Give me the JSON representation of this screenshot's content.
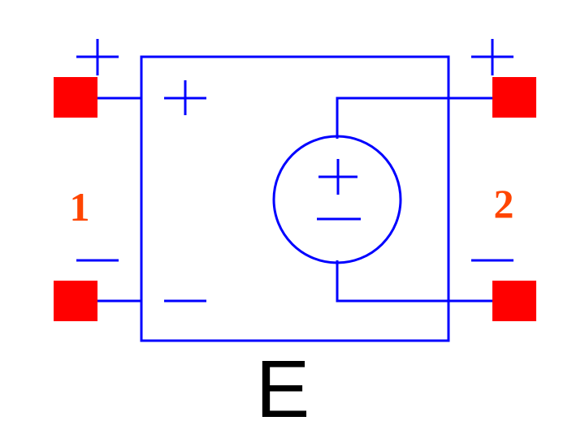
{
  "symbol": {
    "name": "E",
    "description_label": "E"
  },
  "ports": [
    {
      "number": "1",
      "side": "left"
    },
    {
      "number": "2",
      "side": "right"
    }
  ],
  "colors": {
    "wire": "#0000ff",
    "pin": "#ff0000",
    "port_label": "#ff4500",
    "name_text": "#000000",
    "background": "#ffffff"
  }
}
